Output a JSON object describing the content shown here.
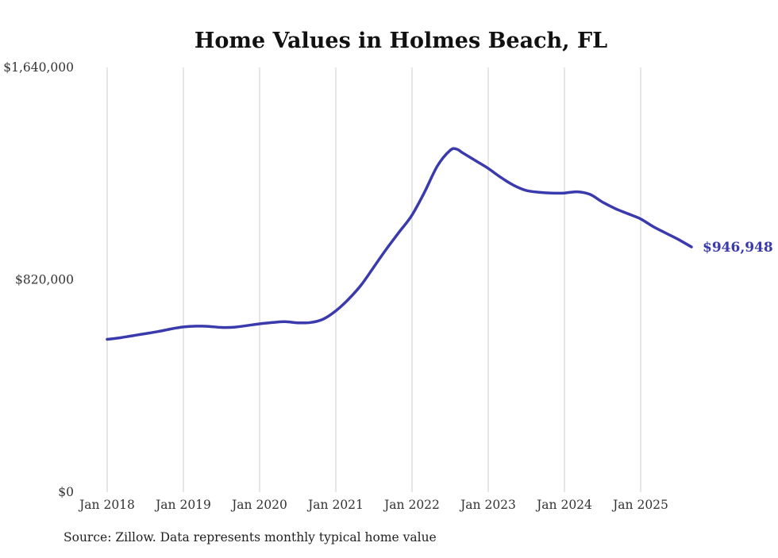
{
  "source_note": "Source: Zillow. Data represents monthly typical home value",
  "colors": {
    "line": "#3a3aad",
    "grid": "#cccccc",
    "title": "#111111",
    "tick": "#333333",
    "source": "#222222"
  },
  "chart_data": {
    "type": "line",
    "title": "Home Values in Holmes Beach, FL",
    "xlabel": "",
    "ylabel": "",
    "ylim": [
      0,
      1640000
    ],
    "grid": "vertical-only",
    "legend": "none",
    "y_ticks": [
      {
        "value": 1640000,
        "label": "$1,640,000"
      },
      {
        "value": 820000,
        "label": "$820,000"
      },
      {
        "value": 0,
        "label": "$0"
      }
    ],
    "x_ticks": [
      {
        "year": 2018,
        "label": "Jan 2018"
      },
      {
        "year": 2019,
        "label": "Jan 2019"
      },
      {
        "year": 2020,
        "label": "Jan 2020"
      },
      {
        "year": 2021,
        "label": "Jan 2021"
      },
      {
        "year": 2022,
        "label": "Jan 2022"
      },
      {
        "year": 2023,
        "label": "Jan 2023"
      },
      {
        "year": 2024,
        "label": "Jan 2024"
      },
      {
        "year": 2025,
        "label": "Jan 2025"
      }
    ],
    "annotation": {
      "text": "$946,948",
      "date": "2025-09",
      "value": 946948
    },
    "series": [
      {
        "name": "Typical home value",
        "color": "#3a3aad",
        "points": [
          {
            "date": "2018-01",
            "value": 590000
          },
          {
            "date": "2018-03",
            "value": 596000
          },
          {
            "date": "2018-05",
            "value": 604000
          },
          {
            "date": "2018-07",
            "value": 612000
          },
          {
            "date": "2018-09",
            "value": 620000
          },
          {
            "date": "2018-11",
            "value": 630000
          },
          {
            "date": "2019-01",
            "value": 638000
          },
          {
            "date": "2019-03",
            "value": 641000
          },
          {
            "date": "2019-05",
            "value": 640000
          },
          {
            "date": "2019-07",
            "value": 636000
          },
          {
            "date": "2019-09",
            "value": 637000
          },
          {
            "date": "2019-11",
            "value": 643000
          },
          {
            "date": "2020-01",
            "value": 650000
          },
          {
            "date": "2020-03",
            "value": 655000
          },
          {
            "date": "2020-05",
            "value": 658000
          },
          {
            "date": "2020-07",
            "value": 654000
          },
          {
            "date": "2020-09",
            "value": 655000
          },
          {
            "date": "2020-11",
            "value": 668000
          },
          {
            "date": "2021-01",
            "value": 700000
          },
          {
            "date": "2021-03",
            "value": 745000
          },
          {
            "date": "2021-05",
            "value": 800000
          },
          {
            "date": "2021-07",
            "value": 870000
          },
          {
            "date": "2021-09",
            "value": 940000
          },
          {
            "date": "2021-11",
            "value": 1005000
          },
          {
            "date": "2022-01",
            "value": 1070000
          },
          {
            "date": "2022-03",
            "value": 1160000
          },
          {
            "date": "2022-05",
            "value": 1260000
          },
          {
            "date": "2022-07",
            "value": 1320000
          },
          {
            "date": "2022-08",
            "value": 1325000
          },
          {
            "date": "2022-09",
            "value": 1310000
          },
          {
            "date": "2022-11",
            "value": 1280000
          },
          {
            "date": "2023-01",
            "value": 1250000
          },
          {
            "date": "2023-03",
            "value": 1215000
          },
          {
            "date": "2023-05",
            "value": 1185000
          },
          {
            "date": "2023-07",
            "value": 1165000
          },
          {
            "date": "2023-09",
            "value": 1158000
          },
          {
            "date": "2023-11",
            "value": 1155000
          },
          {
            "date": "2024-01",
            "value": 1155000
          },
          {
            "date": "2024-03",
            "value": 1160000
          },
          {
            "date": "2024-05",
            "value": 1150000
          },
          {
            "date": "2024-07",
            "value": 1120000
          },
          {
            "date": "2024-09",
            "value": 1095000
          },
          {
            "date": "2024-11",
            "value": 1075000
          },
          {
            "date": "2025-01",
            "value": 1055000
          },
          {
            "date": "2025-03",
            "value": 1025000
          },
          {
            "date": "2025-05",
            "value": 1000000
          },
          {
            "date": "2025-07",
            "value": 975000
          },
          {
            "date": "2025-09",
            "value": 946948
          }
        ]
      }
    ]
  }
}
